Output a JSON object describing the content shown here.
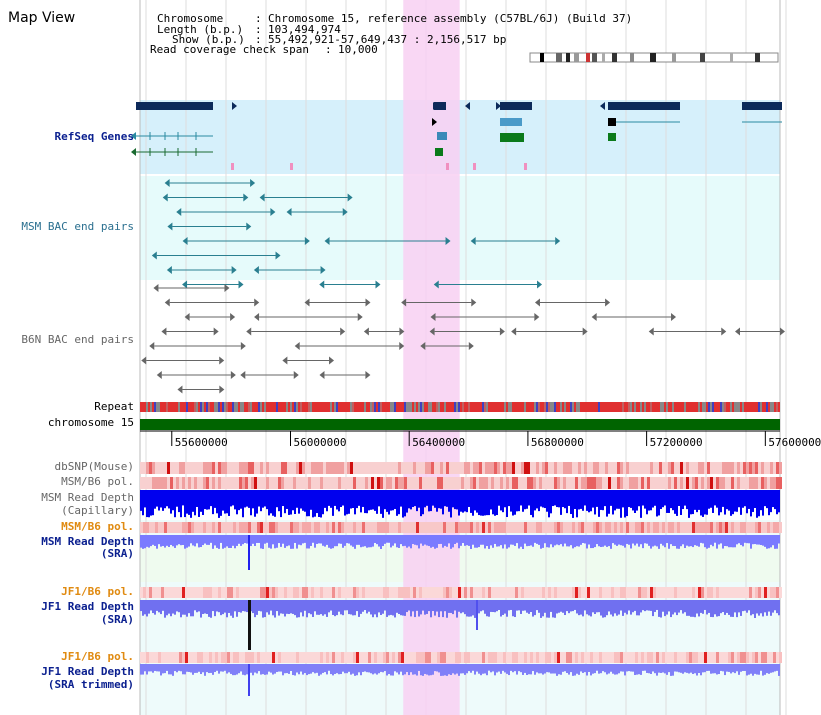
{
  "page_title": "Map View",
  "info": {
    "chromosome_key": "Chromosome",
    "chromosome_val": "Chromosome 15, reference assembly (C57BL/6J) (Build 37)",
    "length_key": "Length (b.p.)",
    "length_val": "103,494,974",
    "show_key": "Show (b.p.)",
    "show_val": "55,492,921-57,649,437 : 2,156,517 bp",
    "coverage_key": "Read coverage check span",
    "coverage_val": "10,000"
  },
  "tracks": {
    "refseq": "RefSeq Genes",
    "msm_bac": "MSM BAC end pairs",
    "b6n_bac": "B6N BAC end pairs",
    "repeat": "Repeat",
    "chromosome": "chromosome 15",
    "dbsnp": "dbSNP(Mouse)",
    "msm_b6_pol_1": "MSM/B6 pol.",
    "msm_depth_cap_1": "MSM Read Depth",
    "msm_depth_cap_2": "(Capillary)",
    "msm_b6_pol_2": "MSM/B6 pol.",
    "msm_depth_sra_1": "MSM Read Depth",
    "msm_depth_sra_2": "(SRA)",
    "jf1_b6_pol_1": "JF1/B6 pol.",
    "jf1_depth_sra_1": "JF1 Read Depth",
    "jf1_depth_sra_2": "(SRA)",
    "jf1_b6_pol_2": "JF1/B6 pol.",
    "jf1_depth_trim_1": "JF1 Read Depth",
    "jf1_depth_trim_2": "(SRA trimmed)"
  },
  "axis_ticks": [
    "55600000",
    "56000000",
    "56400000",
    "56800000",
    "57200000",
    "57600000"
  ],
  "axis_tick_values": [
    55600000,
    56000000,
    56400000,
    56800000,
    57200000,
    57600000
  ],
  "view_range": [
    55492921,
    57649437
  ],
  "highlight_range": [
    56380000,
    56570000
  ],
  "colors": {
    "refseq_bg": "#d6f0fb",
    "bac_bg": "#e6fbfb",
    "highlight": "#f8d0f2",
    "chromosome_bar": "#006400",
    "depth_blue": "#0000ee",
    "navy_label": "#0a1f8f",
    "orange_label": "#e08a10"
  }
}
